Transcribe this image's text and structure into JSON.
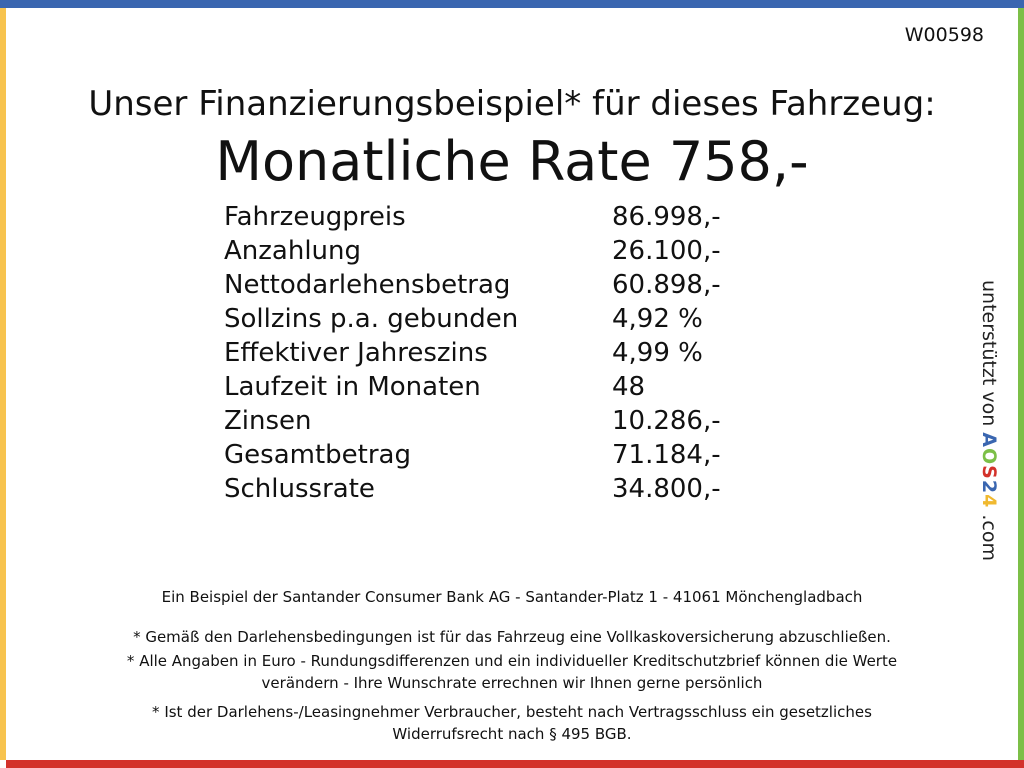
{
  "colors": {
    "top": "#3a66b0",
    "left": "#f7c34e",
    "right": "#7cbf47",
    "bottom": "#d3322b"
  },
  "code": "W00598",
  "headline": "Unser Finanzierungsbeispiel* für dieses Fahrzeug:",
  "rate": "Monatliche Rate 758,-",
  "rows": [
    {
      "label": "Fahrzeugpreis",
      "value": "86.998,-"
    },
    {
      "label": "Anzahlung",
      "value": "26.100,-"
    },
    {
      "label": "Nettodarlehensbetrag",
      "value": "60.898,-"
    },
    {
      "label": "Sollzins p.a. gebunden",
      "value": "4,92 %"
    },
    {
      "label": "Effektiver Jahreszins",
      "value": "4,99 %"
    },
    {
      "label": "Laufzeit in Monaten",
      "value": "48"
    },
    {
      "label": "Zinsen",
      "value": "10.286,-"
    },
    {
      "label": "Gesamtbetrag",
      "value": "71.184,-"
    },
    {
      "label": "Schlussrate",
      "value": "34.800,-"
    }
  ],
  "side": {
    "prefix": "unterstützt von ",
    "logo": [
      "A",
      "O",
      "S",
      "2",
      "4"
    ],
    "suffix": ".com"
  },
  "footer": {
    "bank": "Ein Beispiel der Santander Consumer Bank AG - Santander-Platz 1 - 41061 Mönchengladbach",
    "note1": "* Gemäß den Darlehensbedingungen ist für das Fahrzeug eine Vollkaskoversicherung abzuschließen.",
    "note2a": "* Alle Angaben in Euro - Rundungsdifferenzen und ein individueller Kreditschutzbrief können die Werte",
    "note2b": "verändern - Ihre Wunschrate errechnen wir Ihnen gerne persönlich",
    "note3a": "* Ist der Darlehens-/Leasingnehmer Verbraucher, besteht nach Vertragsschluss ein gesetzliches",
    "note3b": "Widerrufsrecht nach § 495 BGB."
  }
}
